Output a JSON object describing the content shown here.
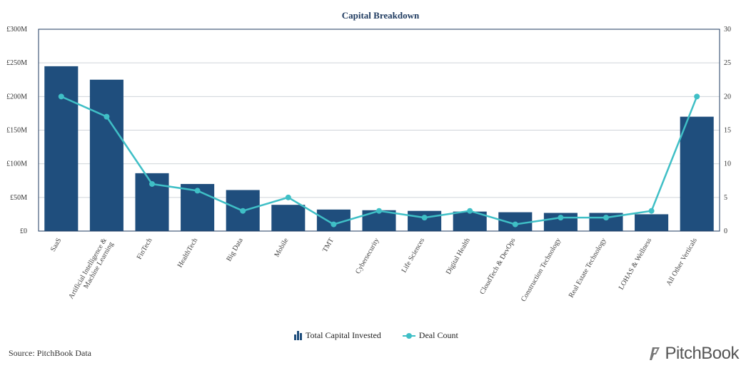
{
  "chart_data": {
    "type": "bar",
    "title": "Capital Breakdown",
    "categories": [
      "SaaS",
      "Artificial Intelligence & Machine Learning",
      "FinTech",
      "HealthTech",
      "Big Data",
      "Mobile",
      "TMT",
      "Cybersecurity",
      "Life Sciences",
      "Digital Health",
      "CloudTech & DevOps",
      "Construction Technology",
      "Real Estate Technology",
      "LOHAS & Wellness",
      "All Other Verticals"
    ],
    "category_lines": [
      [
        "SaaS"
      ],
      [
        "Artificial Intelligence &",
        "Machine Learning"
      ],
      [
        "FinTech"
      ],
      [
        "HealthTech"
      ],
      [
        "Big Data"
      ],
      [
        "Mobile"
      ],
      [
        "TMT"
      ],
      [
        "Cybersecurity"
      ],
      [
        "Life Sciences"
      ],
      [
        "Digital Health"
      ],
      [
        "CloudTech & DevOps"
      ],
      [
        "Construction Technology"
      ],
      [
        "Real Estate Technology"
      ],
      [
        "LOHAS & Wellness"
      ],
      [
        "All Other Verticals"
      ]
    ],
    "series": [
      {
        "name": "Total Capital Invested",
        "type": "bar",
        "axis": "left",
        "unit": "£M",
        "color": "#1f4e7d",
        "values": [
          245,
          225,
          86,
          70,
          61,
          39,
          32,
          31,
          30,
          29,
          28,
          27,
          27,
          25,
          170
        ]
      },
      {
        "name": "Deal Count",
        "type": "line",
        "axis": "right",
        "color": "#3fbfc6",
        "values": [
          20,
          17,
          7,
          6,
          3,
          5,
          1,
          3,
          2,
          3,
          1,
          2,
          2,
          3,
          20
        ]
      }
    ],
    "y_left": {
      "ylim": [
        0,
        300
      ],
      "ticks": [
        0,
        50,
        100,
        150,
        200,
        250,
        300
      ],
      "tick_labels": [
        "£0",
        "£50M",
        "£100M",
        "£150M",
        "£200M",
        "£250M",
        "£300M"
      ]
    },
    "y_right": {
      "ylim": [
        0,
        30
      ],
      "ticks": [
        0,
        5,
        10,
        15,
        20,
        25,
        30
      ],
      "tick_labels": [
        "0",
        "5",
        "10",
        "15",
        "20",
        "25",
        "30"
      ]
    },
    "grid": true,
    "legend_position": "bottom-center"
  },
  "legend": {
    "bar_label": "Total Capital Invested",
    "line_label": "Deal Count"
  },
  "footer": {
    "source": "Source: PitchBook Data",
    "logo_text": "PitchBook"
  }
}
